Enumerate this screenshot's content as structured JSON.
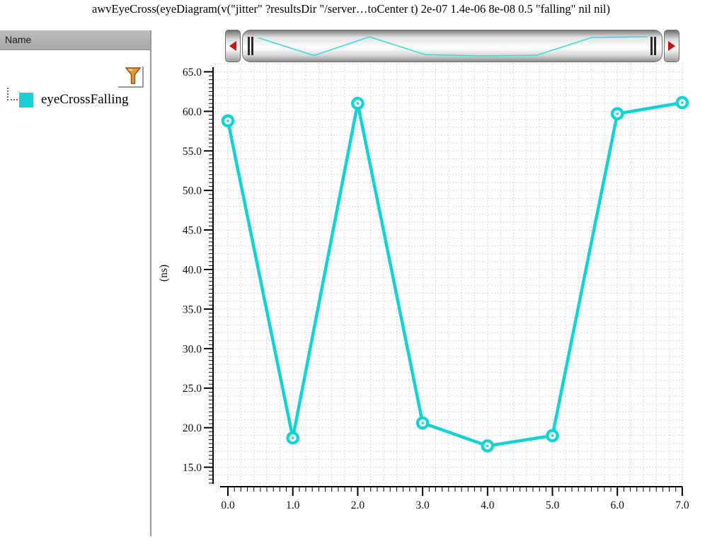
{
  "window": {
    "title": "awvEyeCross(eyeDiagram(v(\"jitter\" ?resultsDir \"/server…toCenter t) 2e-07 1.4e-06 8e-08 0.5 \"falling\" nil nil)"
  },
  "sidebar": {
    "header": "Name",
    "items": [
      {
        "label": "eyeCrossFalling",
        "color": "#14d1d5"
      }
    ],
    "filter_icon": "funnel",
    "filter_icon_color": "#e6953c"
  },
  "scrollbar": {
    "left_arrow_icon": "left-triangle",
    "right_arrow_icon": "right-triangle",
    "arrow_color": "#c41414",
    "preview_color": "#3fd9dd"
  },
  "chart_data": {
    "type": "line",
    "title": "",
    "xlabel": "",
    "ylabel": "(ns)",
    "x": [
      0,
      1,
      2,
      3,
      4,
      5,
      6,
      7
    ],
    "series": [
      {
        "name": "eyeCrossFalling",
        "color": "#14d1d5",
        "values": [
          58.8,
          18.7,
          61.0,
          20.6,
          17.7,
          19.0,
          59.7,
          61.1
        ]
      }
    ],
    "xlim": [
      0,
      7
    ],
    "ylim": [
      13,
      66
    ],
    "x_tick_values": [
      0,
      1,
      2,
      3,
      4,
      5,
      6,
      7
    ],
    "x_tick_labels": [
      "0.0",
      "1.0",
      "2.0",
      "3.0",
      "4.0",
      "5.0",
      "6.0",
      "7.0"
    ],
    "y_tick_values": [
      15,
      20,
      25,
      30,
      35,
      40,
      45,
      50,
      55,
      60,
      65
    ],
    "y_tick_labels": [
      "15.0",
      "20.0",
      "25.0",
      "30.0",
      "35.0",
      "40.0",
      "45.0",
      "50.0",
      "55.0",
      "60.0",
      "65.0"
    ],
    "grid": "dotted",
    "grid_color": "#b6b6b6",
    "legend": "none",
    "marker": "ring"
  }
}
